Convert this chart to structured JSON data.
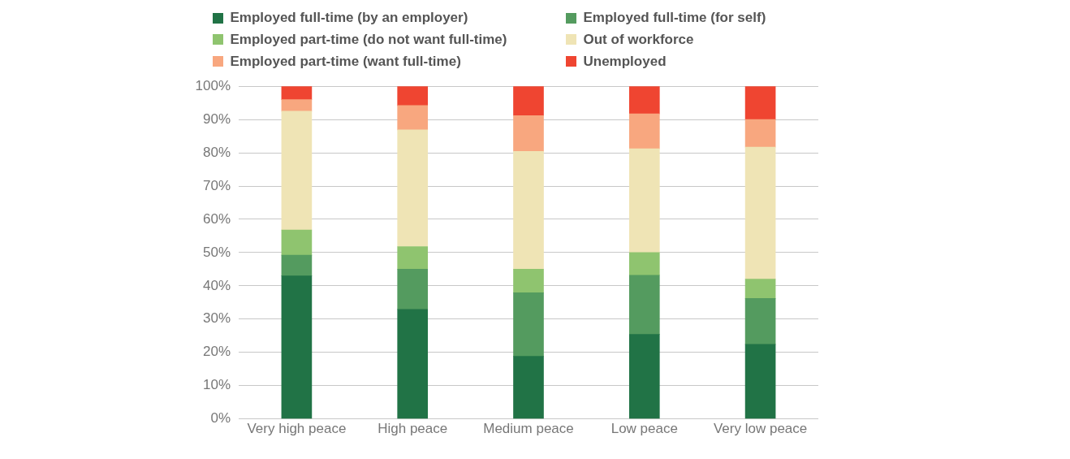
{
  "chart_data": {
    "type": "bar",
    "stacked": true,
    "categories": [
      "Very high peace",
      "High peace",
      "Medium peace",
      "Low peace",
      "Very low peace"
    ],
    "series": [
      {
        "name": "Employed full-time (by an employer)",
        "color": "#217346",
        "values": [
          43.0,
          32.9,
          18.8,
          25.4,
          22.4
        ]
      },
      {
        "name": "Employed full-time (for self)",
        "color": "#549b5f",
        "values": [
          6.2,
          12.1,
          19.1,
          17.8,
          13.8
        ]
      },
      {
        "name": "Employed part-time (do not want full-time)",
        "color": "#8fc46f",
        "values": [
          7.6,
          6.8,
          7.1,
          6.8,
          5.8
        ]
      },
      {
        "name": "Out of workforce",
        "color": "#efe4b5",
        "values": [
          35.7,
          35.1,
          35.4,
          31.2,
          39.7
        ]
      },
      {
        "name": "Employed part-time (want full-time)",
        "color": "#f8a77f",
        "values": [
          3.5,
          7.3,
          10.8,
          10.5,
          8.3
        ]
      },
      {
        "name": "Unemployed",
        "color": "#ef4531",
        "values": [
          4.0,
          5.8,
          8.8,
          8.3,
          10.0
        ]
      }
    ],
    "ylim": [
      0,
      100
    ],
    "yticks": [
      {
        "value": 0,
        "label": "0%"
      },
      {
        "value": 10,
        "label": "10%"
      },
      {
        "value": 20,
        "label": "20%"
      },
      {
        "value": 30,
        "label": "30%"
      },
      {
        "value": 40,
        "label": "40%"
      },
      {
        "value": 50,
        "label": "50%"
      },
      {
        "value": 60,
        "label": "60%"
      },
      {
        "value": 70,
        "label": "70%"
      },
      {
        "value": 80,
        "label": "80%"
      },
      {
        "value": 90,
        "label": "90%"
      },
      {
        "value": 100,
        "label": "100%"
      }
    ],
    "grid": "y",
    "legend": "top"
  }
}
